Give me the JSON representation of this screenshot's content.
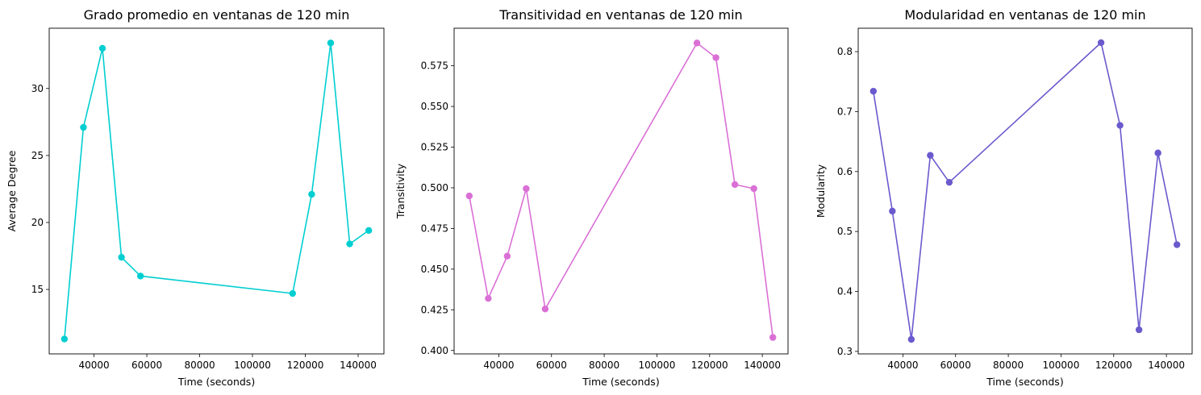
{
  "chart_data": [
    {
      "type": "line",
      "title": "Grado promedio en ventanas de 120 min",
      "xlabel": "Time (seconds)",
      "ylabel": "Average Degree",
      "color": "#00CED1",
      "x": [
        28800,
        36000,
        43200,
        50400,
        57600,
        115200,
        122400,
        129600,
        136800,
        144000
      ],
      "y": [
        11.3,
        27.1,
        33.0,
        17.4,
        16.0,
        14.7,
        22.1,
        33.4,
        18.4,
        19.4
      ],
      "xlim": [
        23040,
        149760
      ],
      "ylim": [
        10.19,
        34.5
      ],
      "xticks": [
        40000,
        60000,
        80000,
        100000,
        120000,
        140000
      ],
      "xtick_labels": [
        "40000",
        "60000",
        "80000",
        "100000",
        "120000",
        "140000"
      ],
      "yticks": [
        15,
        20,
        25,
        30
      ],
      "ytick_labels": [
        "15",
        "20",
        "25",
        "30"
      ],
      "grid": false
    },
    {
      "type": "line",
      "title": "Transitividad en ventanas de 120 min",
      "xlabel": "Time (seconds)",
      "ylabel": "Transitivity",
      "color": "#DA70D6",
      "x": [
        28800,
        36000,
        43200,
        50400,
        57600,
        115200,
        122400,
        129600,
        136800,
        144000
      ],
      "y": [
        0.495,
        0.432,
        0.458,
        0.4995,
        0.4255,
        0.589,
        0.58,
        0.502,
        0.4995,
        0.408
      ],
      "xlim": [
        23040,
        149760
      ],
      "ylim": [
        0.3979,
        0.5981
      ],
      "xticks": [
        40000,
        60000,
        80000,
        100000,
        120000,
        140000
      ],
      "xtick_labels": [
        "40000",
        "60000",
        "80000",
        "100000",
        "120000",
        "140000"
      ],
      "yticks": [
        0.4,
        0.425,
        0.45,
        0.475,
        0.5,
        0.525,
        0.55,
        0.575
      ],
      "ytick_labels": [
        "0.400",
        "0.425",
        "0.450",
        "0.475",
        "0.500",
        "0.525",
        "0.550",
        "0.575"
      ],
      "grid": false
    },
    {
      "type": "line",
      "title": "Modularidad en ventanas de 120 min",
      "xlabel": "Time (seconds)",
      "ylabel": "Modularity",
      "color": "#6A5ACD",
      "x": [
        28800,
        36000,
        43200,
        50400,
        57600,
        115200,
        122400,
        129600,
        136800,
        144000
      ],
      "y": [
        0.734,
        0.534,
        0.32,
        0.627,
        0.582,
        0.815,
        0.677,
        0.336,
        0.631,
        0.478
      ],
      "xlim": [
        23040,
        149760
      ],
      "ylim": [
        0.2958,
        0.8391
      ],
      "xticks": [
        40000,
        60000,
        80000,
        100000,
        120000,
        140000
      ],
      "xtick_labels": [
        "40000",
        "60000",
        "80000",
        "100000",
        "120000",
        "140000"
      ],
      "yticks": [
        0.3,
        0.4,
        0.5,
        0.6,
        0.7,
        0.8
      ],
      "ytick_labels": [
        "0.3",
        "0.4",
        "0.5",
        "0.6",
        "0.7",
        "0.8"
      ],
      "grid": false
    }
  ]
}
